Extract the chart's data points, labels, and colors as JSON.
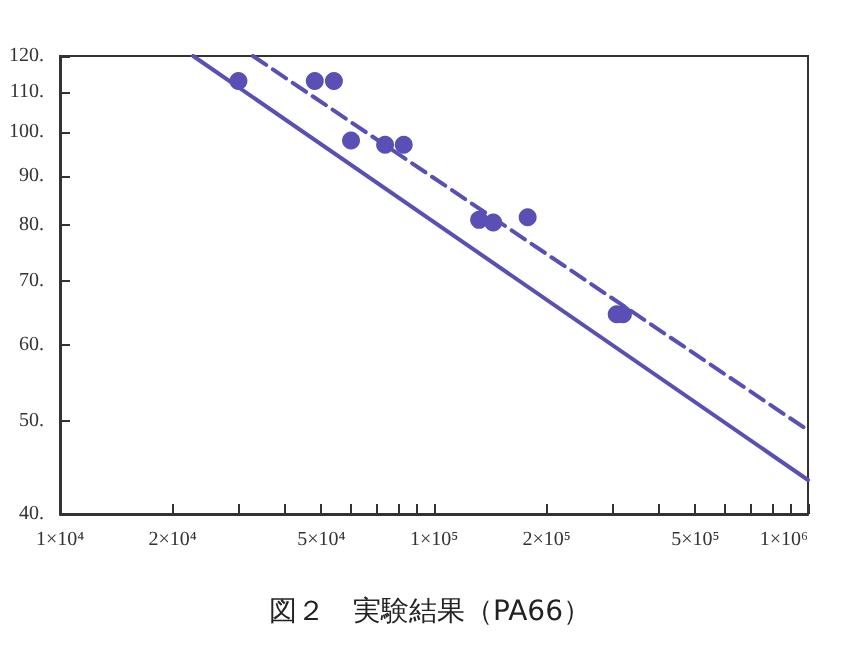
{
  "chart_data": {
    "type": "scatter",
    "title": "図２　実験結果（PA66）",
    "log": "xy",
    "grid": false,
    "marker": "circle",
    "xlim": [
      10000,
      1000000
    ],
    "ylim": [
      40,
      120
    ],
    "xticks": [
      {
        "value": 10000,
        "label": "1×10⁴"
      },
      {
        "value": 20000,
        "label": "2×10⁴"
      },
      {
        "value": 30000,
        "label": null
      },
      {
        "value": 40000,
        "label": null
      },
      {
        "value": 50000,
        "label": "5×10⁴"
      },
      {
        "value": 60000,
        "label": null
      },
      {
        "value": 70000,
        "label": null
      },
      {
        "value": 80000,
        "label": null
      },
      {
        "value": 90000,
        "label": null
      },
      {
        "value": 100000,
        "label": "1×10⁵"
      },
      {
        "value": 200000,
        "label": "2×10⁵"
      },
      {
        "value": 300000,
        "label": null
      },
      {
        "value": 400000,
        "label": null
      },
      {
        "value": 500000,
        "label": "5×10⁵"
      },
      {
        "value": 600000,
        "label": null
      },
      {
        "value": 700000,
        "label": null
      },
      {
        "value": 800000,
        "label": null
      },
      {
        "value": 900000,
        "label": null
      },
      {
        "value": 1000000,
        "label": "1×10⁶"
      }
    ],
    "yticks": [
      {
        "value": 40,
        "label": "40."
      },
      {
        "value": 50,
        "label": "50."
      },
      {
        "value": 60,
        "label": "60."
      },
      {
        "value": 70,
        "label": "70."
      },
      {
        "value": 80,
        "label": "80."
      },
      {
        "value": 90,
        "label": "90."
      },
      {
        "value": 100,
        "label": "100."
      },
      {
        "value": 110,
        "label": "110."
      },
      {
        "value": 120,
        "label": "120."
      }
    ],
    "series": [
      {
        "color": "#5a4fb5",
        "x": [
          30000,
          48000,
          54000,
          60000,
          74000,
          83000,
          132000,
          144000,
          178000,
          308000,
          320000
        ],
        "values": [
          113,
          113,
          113,
          98,
          97,
          97,
          81,
          80.5,
          81.5,
          64.6,
          64.6
        ]
      },
      {
        "type": "line",
        "color": "#5a4fb5",
        "line_style": "solid",
        "marker": "none",
        "x": [
          22700,
          1000000
        ],
        "values": [
          120,
          43.4
        ]
      },
      {
        "type": "line",
        "color": "#5a4fb5",
        "line_style": "dashed",
        "marker": "none",
        "x": [
          32800,
          1000000
        ],
        "values": [
          120,
          48.9
        ]
      }
    ]
  }
}
